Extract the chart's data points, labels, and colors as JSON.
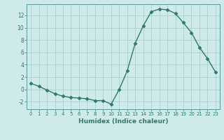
{
  "x": [
    0,
    1,
    2,
    3,
    4,
    5,
    6,
    7,
    8,
    9,
    10,
    11,
    12,
    13,
    14,
    15,
    16,
    17,
    18,
    19,
    20,
    21,
    22,
    23
  ],
  "y": [
    1.0,
    0.5,
    -0.1,
    -0.7,
    -1.1,
    -1.3,
    -1.4,
    -1.5,
    -1.8,
    -1.8,
    -2.4,
    0.0,
    3.0,
    7.5,
    10.3,
    12.6,
    13.0,
    12.9,
    12.3,
    10.8,
    9.2,
    6.8,
    5.0,
    2.8
  ],
  "xlabel": "Humidex (Indice chaleur)",
  "xlim": [
    -0.5,
    23.5
  ],
  "ylim": [
    -3.2,
    13.8
  ],
  "yticks": [
    -2,
    0,
    2,
    4,
    6,
    8,
    10,
    12
  ],
  "xticks": [
    0,
    1,
    2,
    3,
    4,
    5,
    6,
    7,
    8,
    9,
    10,
    11,
    12,
    13,
    14,
    15,
    16,
    17,
    18,
    19,
    20,
    21,
    22,
    23
  ],
  "line_color": "#2d7a6b",
  "marker": "D",
  "marker_size": 2.5,
  "bg_color": "#ceeaea",
  "grid_color": "#aacfcf",
  "font_color": "#2d7a6b",
  "spine_color": "#5a9a9a"
}
